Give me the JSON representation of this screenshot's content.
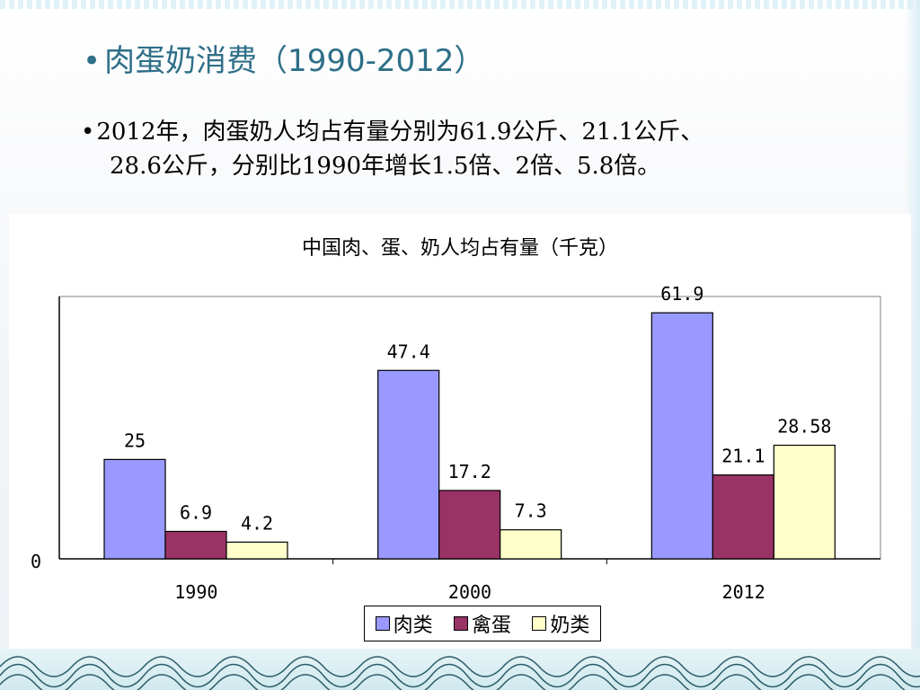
{
  "slide": {
    "title": "肉蛋奶消费（1990-2012）",
    "bullet_line1": "2012年，肉蛋奶人均占有量分别为61.9公斤、21.1公斤、",
    "bullet_line2": "28.6公斤，分别比1990年增长1.5倍、2倍、5.8倍。"
  },
  "chart_data": {
    "type": "bar",
    "title": "中国肉、蛋、奶人均占有量（千克）",
    "categories": [
      "1990",
      "2000",
      "2012"
    ],
    "series": [
      {
        "name": "肉类",
        "values": [
          25,
          47.4,
          61.9
        ],
        "labels": [
          "25",
          "47.4",
          "61.9"
        ],
        "color": "#9999ff"
      },
      {
        "name": "禽蛋",
        "values": [
          6.9,
          17.2,
          21.1
        ],
        "labels": [
          "6.9",
          "17.2",
          "21.1"
        ],
        "color": "#993366"
      },
      {
        "name": "奶类",
        "values": [
          4.2,
          7.3,
          28.58
        ],
        "labels": [
          "4.2",
          "7.3",
          "28.58"
        ],
        "color": "#ffffcc"
      }
    ],
    "y_tick_label": "0",
    "ylim": [
      0,
      66
    ],
    "grid": false,
    "legend_position": "bottom"
  }
}
